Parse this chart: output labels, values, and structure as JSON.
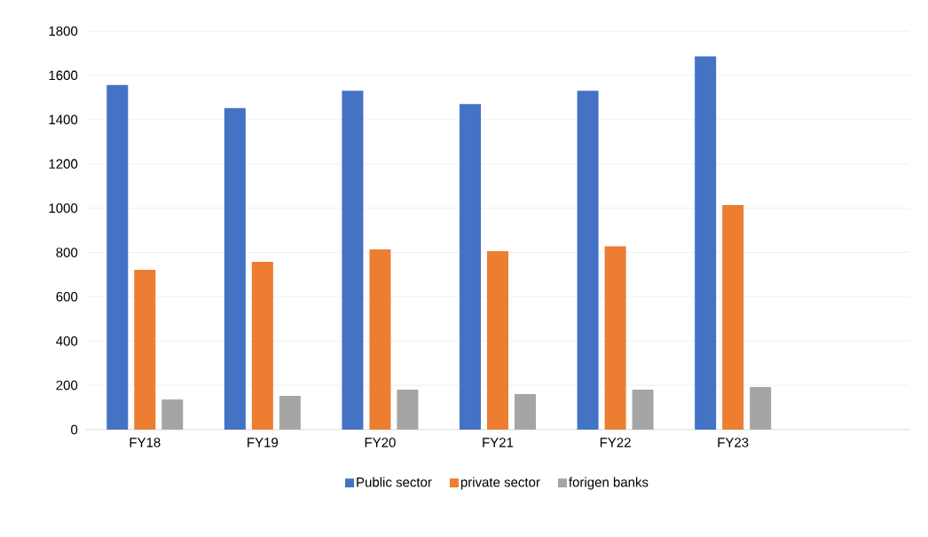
{
  "chart_data": {
    "type": "bar",
    "categories": [
      "FY18",
      "FY19",
      "FY20",
      "FY21",
      "FY22",
      "FY23",
      null
    ],
    "series": [
      {
        "name": "Public sector",
        "color": "#4472c4",
        "values": [
          1556,
          1452,
          1530,
          1470,
          1530,
          1686,
          null
        ]
      },
      {
        "name": "private sector",
        "color": "#ed7d31",
        "values": [
          722,
          758,
          814,
          806,
          828,
          1014,
          null
        ]
      },
      {
        "name": "forigen banks",
        "color": "#a5a5a5",
        "values": [
          136,
          152,
          180,
          160,
          180,
          192,
          null
        ]
      }
    ],
    "ylim": [
      0,
      1800
    ],
    "yticks": [
      0,
      200,
      400,
      600,
      800,
      1000,
      1200,
      1400,
      1600,
      1800
    ],
    "grid": "y",
    "legend": "bottom"
  }
}
